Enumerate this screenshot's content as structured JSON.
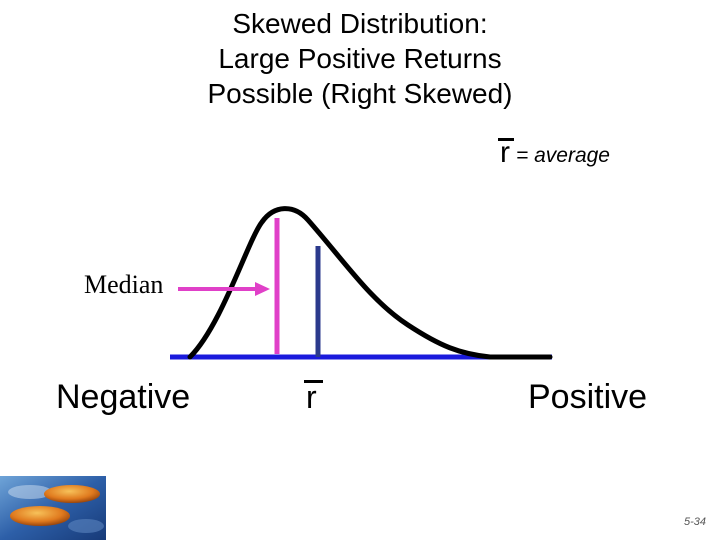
{
  "title": {
    "line1": "Skewed Distribution:",
    "line2": "Large Positive Returns",
    "line3": "Possible (Right Skewed)"
  },
  "legend": {
    "symbol": "r",
    "text": "= average"
  },
  "labels": {
    "median": "Median",
    "negative": "Negative",
    "positive": "Positive",
    "mean_symbol": "r"
  },
  "colors": {
    "curve": "#000000",
    "axis": "#1a1adc",
    "median_line": "#e040c8",
    "mean_line": "#2b3a8c",
    "arrow": "#e040c8"
  },
  "footer": {
    "page_number": "5-34"
  }
}
